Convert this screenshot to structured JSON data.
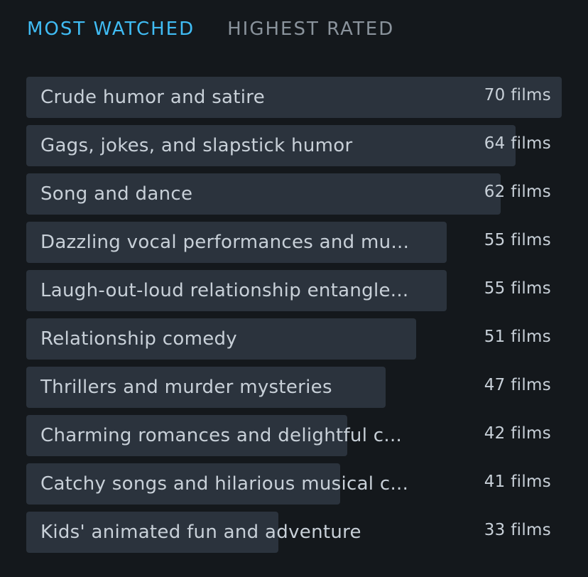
{
  "tabs": {
    "most_watched": "MOST WATCHED",
    "highest_rated": "HIGHEST RATED"
  },
  "colors": {
    "background": "#14181c",
    "bar": "#2b333d",
    "active_tab": "#40bcf4",
    "inactive_tab": "#8a939c",
    "text": "#c8d0d8"
  },
  "themes": [
    {
      "label": "Crude humor and satire",
      "count": "70 films",
      "films": 70
    },
    {
      "label": "Gags, jokes, and slapstick humor",
      "count": "64 films",
      "films": 64
    },
    {
      "label": "Song and dance",
      "count": "62 films",
      "films": 62
    },
    {
      "label": "Dazzling vocal performances and mu...",
      "count": "55 films",
      "films": 55
    },
    {
      "label": "Laugh-out-loud relationship entangle...",
      "count": "55 films",
      "films": 55
    },
    {
      "label": "Relationship comedy",
      "count": "51 films",
      "films": 51
    },
    {
      "label": "Thrillers and murder mysteries",
      "count": "47 films",
      "films": 47
    },
    {
      "label": "Charming romances and delightful c...",
      "count": "42 films",
      "films": 42
    },
    {
      "label": "Catchy songs and hilarious musical c...",
      "count": "41 films",
      "films": 41
    },
    {
      "label": "Kids' animated fun and adventure",
      "count": "33 films",
      "films": 33
    }
  ]
}
